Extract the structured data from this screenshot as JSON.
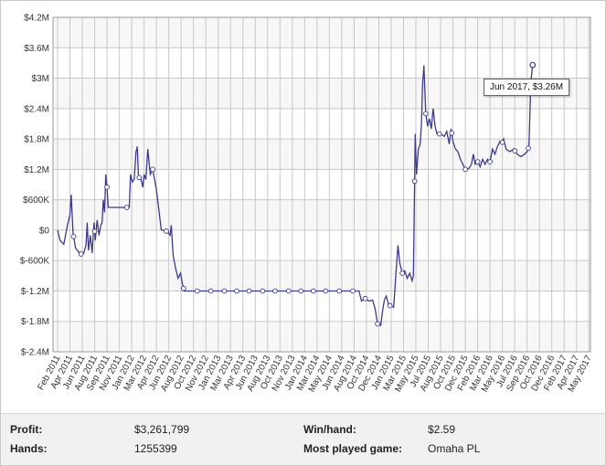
{
  "chart_data": {
    "type": "line",
    "title": "",
    "xlabel": "",
    "ylabel": "",
    "ylim": [
      -2400000,
      4200000
    ],
    "y_ticks": [
      {
        "value": 4200000,
        "label": "$4.2M"
      },
      {
        "value": 3600000,
        "label": "$3.6M"
      },
      {
        "value": 3000000,
        "label": "$3M"
      },
      {
        "value": 2400000,
        "label": "$2.4M"
      },
      {
        "value": 1800000,
        "label": "$1.8M"
      },
      {
        "value": 1200000,
        "label": "$1.2M"
      },
      {
        "value": 600000,
        "label": "$600K"
      },
      {
        "value": 0,
        "label": "$0"
      },
      {
        "value": -600000,
        "label": "$-600K"
      },
      {
        "value": -1200000,
        "label": "$-1.2M"
      },
      {
        "value": -1800000,
        "label": "$-1.8M"
      },
      {
        "value": -2400000,
        "label": "$-2.4M"
      }
    ],
    "x_tick_labels": [
      "Feb 2011",
      "Apr 2011",
      "Jun 2011",
      "Aug 2011",
      "Sep 2011",
      "Nov 2011",
      "Jan 2012",
      "Mar 2012",
      "Apr 2012",
      "Jun 2012",
      "Aug 2012",
      "Oct 2012",
      "Nov 2012",
      "Jan 2013",
      "Mar 2013",
      "Apr 2013",
      "Jun 2013",
      "Aug 2013",
      "Oct 2013",
      "Nov 2013",
      "Jan 2014",
      "Mar 2014",
      "May 2014",
      "Jun 2014",
      "Aug 2014",
      "Oct 2014",
      "Dec 2014",
      "Jan 2015",
      "Mar 2015",
      "May 2015",
      "Jul 2015",
      "Aug 2015",
      "Oct 2015",
      "Dec 2015",
      "Feb 2016",
      "Mar 2016",
      "May 2016",
      "Jul 2016",
      "Sep 2016",
      "Oct 2016",
      "Dec 2016",
      "Feb 2017",
      "Apr 2017",
      "May 2017"
    ],
    "grid": true,
    "line_color": "#3b3b8a",
    "series": [
      {
        "values": [
          [
            0.0,
            0
          ],
          [
            0.2,
            -200000
          ],
          [
            0.5,
            -280000
          ],
          [
            0.8,
            100000
          ],
          [
            1.0,
            300000
          ],
          [
            1.1,
            700000
          ],
          [
            1.25,
            -50000
          ],
          [
            1.45,
            -350000
          ],
          [
            1.7,
            -430000
          ],
          [
            1.95,
            -480000
          ],
          [
            2.1,
            -460000
          ],
          [
            2.3,
            -300000
          ],
          [
            2.4,
            150000
          ],
          [
            2.5,
            -400000
          ],
          [
            2.65,
            -100000
          ],
          [
            2.8,
            -450000
          ],
          [
            2.95,
            150000
          ],
          [
            3.05,
            -200000
          ],
          [
            3.2,
            200000
          ],
          [
            3.35,
            -100000
          ],
          [
            3.5,
            100000
          ],
          [
            3.6,
            150000
          ],
          [
            3.7,
            600000
          ],
          [
            3.8,
            350000
          ],
          [
            3.9,
            1100000
          ],
          [
            4.0,
            850000
          ],
          [
            4.1,
            450000
          ],
          [
            4.5,
            450000
          ],
          [
            5.0,
            450000
          ],
          [
            5.5,
            450000
          ],
          [
            5.8,
            450000
          ],
          [
            5.9,
            1100000
          ],
          [
            6.05,
            950000
          ],
          [
            6.2,
            1000000
          ],
          [
            6.35,
            1550000
          ],
          [
            6.45,
            1650000
          ],
          [
            6.55,
            1050000
          ],
          [
            6.75,
            1000000
          ],
          [
            6.9,
            850000
          ],
          [
            7.0,
            1100000
          ],
          [
            7.15,
            1000000
          ],
          [
            7.3,
            1600000
          ],
          [
            7.5,
            1100000
          ],
          [
            7.7,
            1200000
          ],
          [
            7.85,
            1000000
          ],
          [
            8.0,
            800000
          ],
          [
            8.2,
            400000
          ],
          [
            8.4,
            0
          ],
          [
            8.7,
            0
          ],
          [
            8.95,
            -50000
          ],
          [
            9.1,
            -100000
          ],
          [
            9.2,
            100000
          ],
          [
            9.35,
            -500000
          ],
          [
            9.55,
            -750000
          ],
          [
            9.75,
            -950000
          ],
          [
            9.95,
            -850000
          ],
          [
            10.1,
            -1050000
          ],
          [
            10.25,
            -1200000
          ],
          [
            11,
            -1200000
          ],
          [
            12,
            -1200000
          ],
          [
            13,
            -1200000
          ],
          [
            14,
            -1200000
          ],
          [
            15,
            -1200000
          ],
          [
            16,
            -1200000
          ],
          [
            17,
            -1200000
          ],
          [
            18,
            -1200000
          ],
          [
            19,
            -1200000
          ],
          [
            20,
            -1200000
          ],
          [
            21,
            -1200000
          ],
          [
            22,
            -1200000
          ],
          [
            23,
            -1200000
          ],
          [
            24,
            -1200000
          ],
          [
            24.4,
            -1200000
          ],
          [
            24.6,
            -1400000
          ],
          [
            24.9,
            -1350000
          ],
          [
            25.2,
            -1400000
          ],
          [
            25.5,
            -1380000
          ],
          [
            25.7,
            -1550000
          ],
          [
            25.9,
            -1850000
          ],
          [
            26.15,
            -1880000
          ],
          [
            26.3,
            -1600000
          ],
          [
            26.45,
            -1380000
          ],
          [
            26.6,
            -1300000
          ],
          [
            26.8,
            -1480000
          ],
          [
            27.0,
            -1500000
          ],
          [
            27.2,
            -1520000
          ],
          [
            27.4,
            -800000
          ],
          [
            27.55,
            -300000
          ],
          [
            27.7,
            -650000
          ],
          [
            27.9,
            -850000
          ],
          [
            28.1,
            -800000
          ],
          [
            28.3,
            -950000
          ],
          [
            28.5,
            -850000
          ],
          [
            28.7,
            -1000000
          ],
          [
            28.8,
            -900000
          ],
          [
            28.95,
            1900000
          ],
          [
            29.05,
            1100000
          ],
          [
            29.2,
            1600000
          ],
          [
            29.35,
            1700000
          ],
          [
            29.45,
            2100000
          ],
          [
            29.55,
            2900000
          ],
          [
            29.65,
            3250000
          ],
          [
            29.8,
            2300000
          ],
          [
            29.95,
            2050000
          ],
          [
            30.1,
            2200000
          ],
          [
            30.25,
            2000000
          ],
          [
            30.4,
            2400000
          ],
          [
            30.55,
            2050000
          ],
          [
            30.7,
            1900000
          ],
          [
            31.0,
            1900000
          ],
          [
            31.3,
            1850000
          ],
          [
            31.5,
            1950000
          ],
          [
            31.7,
            1700000
          ],
          [
            31.85,
            2000000
          ],
          [
            32.0,
            1750000
          ],
          [
            32.2,
            1600000
          ],
          [
            32.4,
            1550000
          ],
          [
            32.6,
            1400000
          ],
          [
            32.8,
            1300000
          ],
          [
            33.0,
            1200000
          ],
          [
            33.3,
            1220000
          ],
          [
            33.5,
            1300000
          ],
          [
            33.65,
            1500000
          ],
          [
            33.8,
            1300000
          ],
          [
            34.0,
            1350000
          ],
          [
            34.2,
            1250000
          ],
          [
            34.4,
            1400000
          ],
          [
            34.6,
            1300000
          ],
          [
            34.8,
            1400000
          ],
          [
            35.0,
            1350000
          ],
          [
            35.2,
            1600000
          ],
          [
            35.4,
            1500000
          ],
          [
            35.6,
            1650000
          ],
          [
            35.8,
            1750000
          ],
          [
            35.95,
            1700000
          ],
          [
            36.1,
            1800000
          ],
          [
            36.3,
            1600000
          ],
          [
            36.6,
            1550000
          ],
          [
            36.9,
            1600000
          ],
          [
            37.2,
            1500000
          ],
          [
            37.5,
            1450000
          ],
          [
            37.8,
            1500000
          ],
          [
            38.0,
            1550000
          ],
          [
            38.15,
            1650000
          ],
          [
            38.3,
            2900000
          ],
          [
            38.45,
            3260000
          ]
        ]
      }
    ],
    "markers_x": [
      1.3,
      1.9,
      3.0,
      4.0,
      5.6,
      6.6,
      7.7,
      8.8,
      10.2,
      11.3,
      12.4,
      13.5,
      14.5,
      15.5,
      16.6,
      17.6,
      18.7,
      19.7,
      20.7,
      21.7,
      22.8,
      23.9,
      24.9,
      25.9,
      26.9,
      27.9,
      28.9,
      29.8,
      30.9,
      31.9,
      33.0,
      34.0,
      35.0,
      36.0,
      37.0,
      38.1
    ],
    "highlight": {
      "x": 38.45,
      "label": "Jun 2017, $3.26M"
    }
  },
  "stats": {
    "profit_label": "Profit:",
    "profit_value": "$3,261,799",
    "hands_label": "Hands:",
    "hands_value": "1255399",
    "winhand_label": "Win/hand:",
    "winhand_value": "$2.59",
    "game_label": "Most played game:",
    "game_value": "Omaha PL"
  }
}
